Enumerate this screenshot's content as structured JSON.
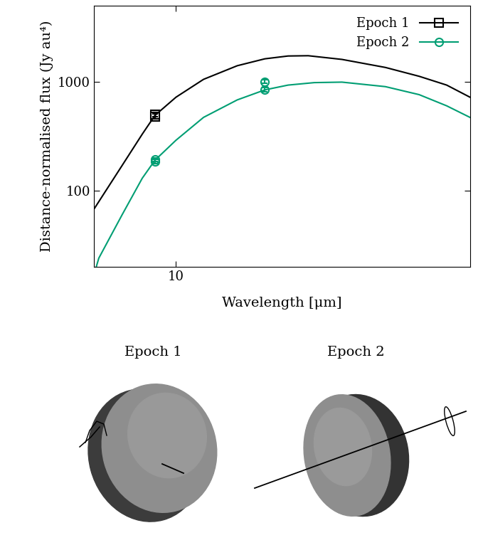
{
  "chart_data": {
    "type": "line",
    "x_label": "Wavelength [μm]",
    "y_label": "Distance-normalised flux (Jy au⁴)",
    "log": true,
    "xlim": [
      5.8,
      70
    ],
    "xticks": [
      10
    ],
    "ylim": [
      20,
      5000
    ],
    "yticks": [
      100,
      1000
    ],
    "legend": "upper right",
    "series": [
      {
        "name": "Epoch 1",
        "color": "#000000",
        "marker": "square",
        "line_style": "solid",
        "x": [
          5.8,
          7,
          8,
          8.7,
          10,
          12,
          15,
          18,
          21,
          24,
          30,
          40,
          50,
          60,
          70
        ],
        "values": [
          67,
          170,
          330,
          490,
          720,
          1050,
          1400,
          1620,
          1720,
          1730,
          1600,
          1350,
          1120,
          930,
          720
        ],
        "observations": {
          "x": [
            8.7,
            8.7
          ],
          "values": [
            480,
            500
          ],
          "errors": [
            25,
            25
          ]
        }
      },
      {
        "name": "Epoch 2",
        "color": "#009e73",
        "marker": "circle",
        "line_style": "solid",
        "x": [
          5.9,
          6,
          7,
          8,
          8.7,
          10,
          12,
          15,
          18,
          21,
          25,
          30,
          40,
          50,
          60,
          70
        ],
        "values": [
          20,
          24,
          60,
          130,
          190,
          290,
          470,
          680,
          840,
          930,
          980,
          990,
          900,
          760,
          600,
          470
        ],
        "observations": {
          "x": [
            8.7,
            8.7,
            18,
            18
          ],
          "values": [
            185,
            192,
            850,
            1000
          ],
          "errors": [
            8,
            8,
            40,
            40
          ]
        }
      }
    ]
  },
  "shape_views": [
    "Epoch 1",
    "Epoch 2"
  ]
}
